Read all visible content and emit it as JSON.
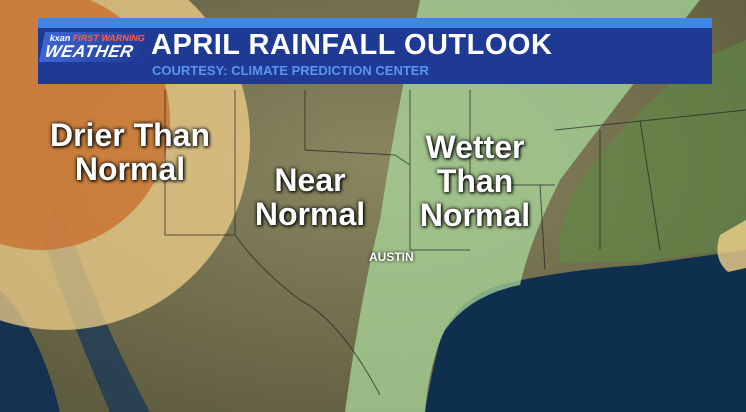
{
  "header": {
    "logo_top": "kxan",
    "logo_top_accent": "FIRST WARNING",
    "logo_main": "WEATHER",
    "title": "APRIL RAINFALL OUTLOOK",
    "subtitle": "COURTESY: CLIMATE PREDICTION CENTER"
  },
  "regions": {
    "drier": "Drier Than Normal",
    "near": "Near Normal",
    "wetter": "Wetter Than Normal"
  },
  "cities": {
    "austin": "AUSTIN"
  },
  "colors": {
    "drier": "#c8702e",
    "drier_edge": "#f0cf8a",
    "wetter": "#a9d79a",
    "wetter_strong": "#7fc06b",
    "water": "#0f2f4e",
    "banner": "#1f3a94"
  }
}
